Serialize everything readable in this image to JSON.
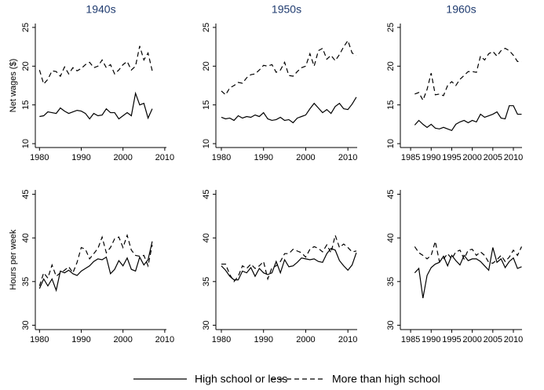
{
  "chart_data": [
    {
      "type": "line",
      "title": "1940s",
      "ylabel": "Net wages ($)",
      "x": [
        1980,
        1981,
        1982,
        1983,
        1984,
        1985,
        1986,
        1987,
        1988,
        1989,
        1990,
        1991,
        1992,
        1993,
        1994,
        1995,
        1996,
        1997,
        1998,
        1999,
        2000,
        2001,
        2002,
        2003,
        2004,
        2005,
        2006,
        2007
      ],
      "series": [
        {
          "name": "High school or less",
          "color": "#000000",
          "dash": "solid",
          "values": [
            13.5,
            13.6,
            14.1,
            14.0,
            13.9,
            14.6,
            14.2,
            13.9,
            14.1,
            14.3,
            14.2,
            13.9,
            13.2,
            13.9,
            13.6,
            13.7,
            14.5,
            14.0,
            14.0,
            13.2,
            13.6,
            14.0,
            13.6,
            16.5,
            15.0,
            15.2,
            13.3,
            14.5
          ]
        },
        {
          "name": "More than high school",
          "color": "#000000",
          "dash": "dashed",
          "values": [
            19.5,
            17.7,
            18.3,
            19.4,
            19.3,
            18.7,
            19.9,
            19.0,
            19.8,
            19.4,
            19.7,
            20.2,
            20.5,
            19.8,
            20.0,
            20.8,
            19.8,
            20.2,
            19.0,
            19.5,
            20.2,
            20.6,
            19.5,
            20.0,
            22.6,
            20.8,
            21.7,
            19.4
          ]
        }
      ],
      "xlim": [
        1979,
        2010.4
      ],
      "ylim": [
        9.5,
        25.5
      ],
      "xticks": [
        1980,
        1990,
        2000,
        2010
      ],
      "yticks": [
        10,
        15,
        20,
        25
      ]
    },
    {
      "type": "line",
      "title": "1950s",
      "x": [
        1980,
        1981,
        1982,
        1983,
        1984,
        1985,
        1986,
        1987,
        1988,
        1989,
        1990,
        1991,
        1992,
        1993,
        1994,
        1995,
        1996,
        1997,
        1998,
        1999,
        2000,
        2001,
        2002,
        2003,
        2004,
        2005,
        2006,
        2007,
        2008,
        2009,
        2010,
        2011,
        2012
      ],
      "series": [
        {
          "color": "#000000",
          "dash": "solid",
          "values": [
            13.4,
            13.2,
            13.3,
            13.0,
            13.6,
            13.3,
            13.5,
            13.4,
            13.7,
            13.5,
            14.0,
            13.2,
            13.0,
            13.1,
            13.4,
            13.0,
            13.1,
            12.7,
            13.3,
            13.5,
            13.7,
            14.5,
            15.2,
            14.6,
            14.0,
            14.4,
            13.9,
            14.8,
            15.2,
            14.5,
            14.4,
            15.1,
            16.0
          ]
        },
        {
          "color": "#000000",
          "dash": "dashed",
          "values": [
            16.8,
            16.3,
            17.2,
            17.5,
            17.9,
            17.8,
            18.5,
            18.9,
            19.0,
            19.5,
            20.1,
            20.0,
            20.2,
            19.2,
            19.5,
            20.5,
            18.8,
            18.7,
            19.3,
            19.8,
            20.0,
            21.6,
            20.0,
            22.0,
            22.3,
            20.9,
            21.4,
            20.7,
            21.5,
            22.5,
            23.3,
            21.7,
            21.4
          ]
        }
      ],
      "xlim": [
        1978.7,
        2012.2
      ],
      "ylim": [
        9.5,
        25.5
      ],
      "xticks": [
        1980,
        1990,
        2000,
        2010
      ],
      "yticks": [
        10,
        15,
        20,
        25
      ]
    },
    {
      "type": "line",
      "title": "1960s",
      "x": [
        1986,
        1987,
        1988,
        1989,
        1990,
        1991,
        1992,
        1993,
        1994,
        1995,
        1996,
        1997,
        1998,
        1999,
        2000,
        2001,
        2002,
        2003,
        2004,
        2005,
        2006,
        2007,
        2008,
        2009,
        2010,
        2011,
        2012
      ],
      "series": [
        {
          "color": "#000000",
          "dash": "solid",
          "values": [
            12.4,
            13.0,
            12.5,
            12.1,
            12.5,
            12.0,
            11.9,
            12.1,
            11.9,
            11.7,
            12.5,
            12.8,
            13.0,
            12.7,
            13.0,
            12.8,
            13.8,
            13.4,
            13.6,
            13.8,
            14.1,
            13.3,
            13.2,
            14.9,
            14.9,
            13.8,
            13.8
          ]
        },
        {
          "color": "#000000",
          "dash": "dashed",
          "values": [
            16.4,
            16.6,
            15.6,
            17.0,
            19.1,
            16.3,
            16.4,
            16.2,
            17.5,
            18.0,
            17.5,
            18.3,
            18.8,
            19.3,
            19.3,
            19.2,
            21.3,
            20.8,
            21.6,
            21.9,
            21.3,
            22.0,
            22.3,
            22.0,
            21.4,
            20.6,
            20.6
          ]
        }
      ],
      "xlim": [
        1982.5,
        2012.1
      ],
      "ylim": [
        9.5,
        25.5
      ],
      "xticks": [
        1985,
        1990,
        1995,
        2000,
        2005,
        2010
      ],
      "yticks": [
        10,
        15,
        20,
        25
      ]
    },
    {
      "type": "line",
      "ylabel": "Hours per week",
      "x": [
        1980,
        1981,
        1982,
        1983,
        1984,
        1985,
        1986,
        1987,
        1988,
        1989,
        1990,
        1991,
        1992,
        1993,
        1994,
        1995,
        1996,
        1997,
        1998,
        1999,
        2000,
        2001,
        2002,
        2003,
        2004,
        2005,
        2006,
        2007
      ],
      "series": [
        {
          "color": "#000000",
          "dash": "solid",
          "values": [
            34.2,
            35.3,
            34.5,
            35.3,
            34.0,
            36.2,
            36.0,
            36.3,
            35.9,
            35.7,
            36.2,
            36.5,
            36.8,
            37.3,
            37.6,
            37.5,
            37.8,
            35.9,
            36.4,
            37.4,
            36.8,
            37.7,
            36.4,
            36.2,
            37.8,
            36.9,
            37.5,
            39.6
          ]
        },
        {
          "color": "#000000",
          "dash": "dashed",
          "values": [
            34.5,
            36.0,
            35.4,
            36.9,
            35.6,
            36.0,
            36.3,
            36.7,
            36.0,
            37.2,
            38.9,
            38.7,
            37.6,
            38.2,
            38.8,
            40.1,
            38.3,
            38.9,
            39.9,
            40.1,
            38.9,
            40.3,
            38.6,
            38.0,
            37.9,
            38.0,
            36.8,
            39.2
          ]
        }
      ],
      "xlim": [
        1979,
        2010.4
      ],
      "ylim": [
        29.5,
        45.5
      ],
      "xticks": [
        1980,
        1990,
        2000,
        2010
      ],
      "yticks": [
        30,
        35,
        40,
        45
      ]
    },
    {
      "type": "line",
      "x": [
        1980,
        1981,
        1982,
        1983,
        1984,
        1985,
        1986,
        1987,
        1988,
        1989,
        1990,
        1991,
        1992,
        1993,
        1994,
        1995,
        1996,
        1997,
        1998,
        1999,
        2000,
        2001,
        2002,
        2003,
        2004,
        2005,
        2006,
        2007,
        2008,
        2009,
        2010,
        2011,
        2012
      ],
      "series": [
        {
          "color": "#000000",
          "dash": "solid",
          "values": [
            36.8,
            36.3,
            35.6,
            35.2,
            35.2,
            36.2,
            36.0,
            36.6,
            35.6,
            36.5,
            36.0,
            35.8,
            36.0,
            37.3,
            36.0,
            37.5,
            36.7,
            36.8,
            37.2,
            37.7,
            37.6,
            37.5,
            37.6,
            37.3,
            37.2,
            38.2,
            38.8,
            38.6,
            37.4,
            36.8,
            36.3,
            36.9,
            38.3
          ]
        },
        {
          "color": "#000000",
          "dash": "dashed",
          "values": [
            37.0,
            37.0,
            35.8,
            35.0,
            35.6,
            36.8,
            36.5,
            37.0,
            36.5,
            36.8,
            37.3,
            35.3,
            36.6,
            36.8,
            37.3,
            38.2,
            38.2,
            38.7,
            38.5,
            38.3,
            37.8,
            38.7,
            39.0,
            38.8,
            38.4,
            39.2,
            38.3,
            40.3,
            38.9,
            39.3,
            38.9,
            38.4,
            38.5
          ]
        }
      ],
      "xlim": [
        1978.7,
        2012.2
      ],
      "ylim": [
        29.5,
        45.5
      ],
      "xticks": [
        1980,
        1990,
        2000,
        2010
      ],
      "yticks": [
        30,
        35,
        40,
        45
      ]
    },
    {
      "type": "line",
      "x": [
        1986,
        1987,
        1988,
        1989,
        1990,
        1991,
        1992,
        1993,
        1994,
        1995,
        1996,
        1997,
        1998,
        1999,
        2000,
        2001,
        2002,
        2003,
        2004,
        2005,
        2006,
        2007,
        2008,
        2009,
        2010,
        2011,
        2012
      ],
      "series": [
        {
          "color": "#000000",
          "dash": "solid",
          "values": [
            36.0,
            36.5,
            33.1,
            35.7,
            36.6,
            37.0,
            37.2,
            37.9,
            36.8,
            38.0,
            37.4,
            36.9,
            38.0,
            37.4,
            37.6,
            37.6,
            37.3,
            36.8,
            36.3,
            38.9,
            37.2,
            37.6,
            36.6,
            37.3,
            37.7,
            36.5,
            36.7
          ]
        },
        {
          "color": "#000000",
          "dash": "dashed",
          "values": [
            39.0,
            38.3,
            38.0,
            37.6,
            38.0,
            39.6,
            37.3,
            37.6,
            38.2,
            37.6,
            38.4,
            38.6,
            37.6,
            38.6,
            38.7,
            38.0,
            38.4,
            38.0,
            37.2,
            37.1,
            37.5,
            38.0,
            37.3,
            37.8,
            38.6,
            38.0,
            39.0
          ]
        }
      ],
      "xlim": [
        1982.5,
        2012.1
      ],
      "ylim": [
        29.5,
        45.5
      ],
      "xticks": [
        1985,
        1990,
        1995,
        2000,
        2005,
        2010
      ],
      "yticks": [
        30,
        35,
        40,
        45
      ]
    }
  ]
}
